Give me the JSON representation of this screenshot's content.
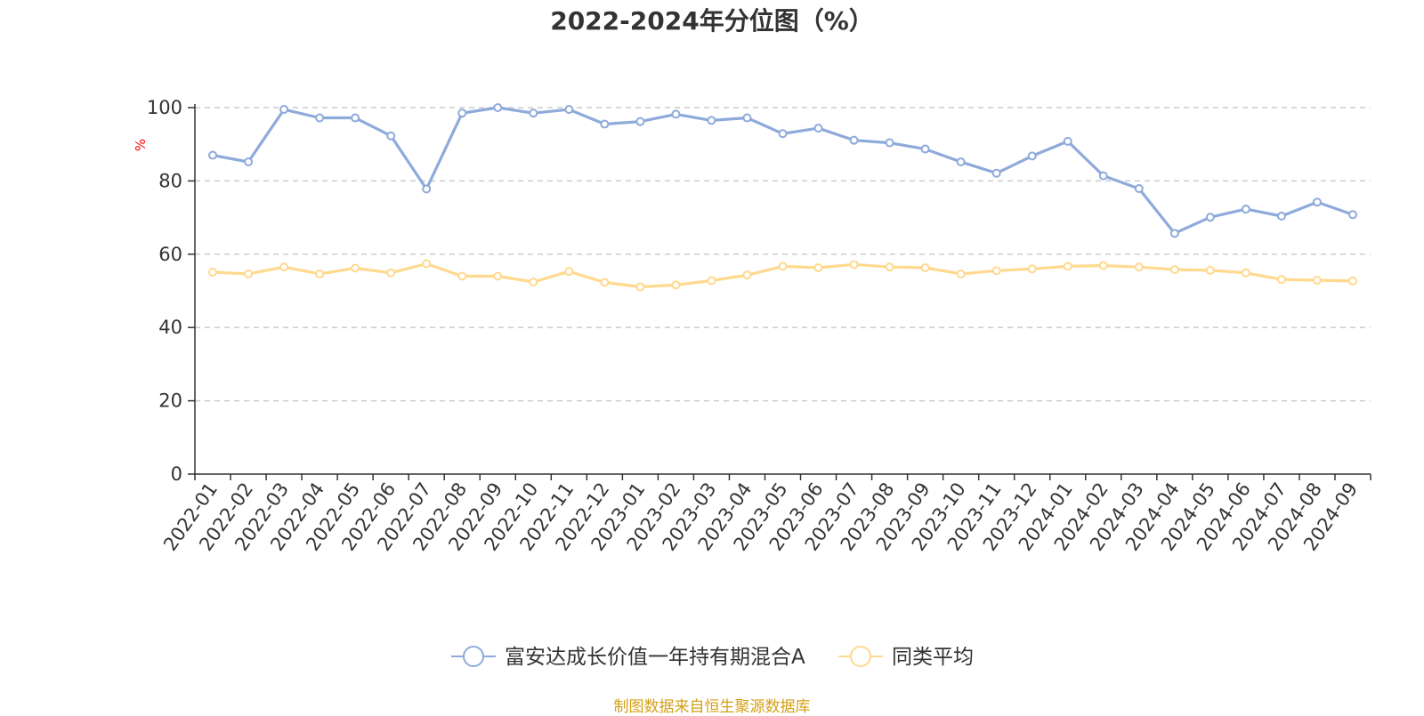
{
  "chart_data": {
    "type": "line",
    "title": "2022-2024年分位图（%）",
    "ylabel": "%",
    "xlabel": "",
    "ylim": [
      0,
      100
    ],
    "yticks": [
      0,
      20,
      40,
      60,
      80,
      100
    ],
    "grid": "horizontal dashed",
    "legend_position": "bottom",
    "categories": [
      "2022-01",
      "2022-02",
      "2022-03",
      "2022-04",
      "2022-05",
      "2022-06",
      "2022-07",
      "2022-08",
      "2022-09",
      "2022-10",
      "2022-11",
      "2022-12",
      "2023-01",
      "2023-02",
      "2023-03",
      "2023-04",
      "2023-05",
      "2023-06",
      "2023-07",
      "2023-08",
      "2023-09",
      "2023-10",
      "2023-11",
      "2023-12",
      "2024-01",
      "2024-02",
      "2024-03",
      "2024-04",
      "2024-05",
      "2024-06",
      "2024-07",
      "2024-08",
      "2024-09"
    ],
    "series": [
      {
        "name": "富安达成长价值一年持有期混合A",
        "color": "#8eaadb",
        "values": [
          87,
          85.2,
          99.5,
          97.2,
          97.2,
          92.3,
          77.8,
          98.5,
          100,
          98.5,
          99.5,
          95.5,
          96.2,
          98.2,
          96.5,
          97.2,
          92.9,
          94.4,
          91.1,
          90.4,
          88.7,
          85.2,
          82.1,
          86.8,
          90.8,
          81.4,
          77.9,
          65.7,
          70.1,
          72.3,
          70.4,
          74.2,
          70.8
        ]
      },
      {
        "name": "同类平均",
        "color": "#ffd98e",
        "values": [
          55.1,
          54.6,
          56.5,
          54.6,
          56.2,
          54.9,
          57.4,
          54,
          54,
          52.4,
          55.3,
          52.3,
          51.1,
          51.6,
          52.8,
          54.3,
          56.7,
          56.3,
          57.2,
          56.5,
          56.3,
          54.6,
          55.5,
          56,
          56.7,
          56.9,
          56.5,
          55.8,
          55.6,
          54.9,
          53.1,
          52.9,
          52.7
        ]
      }
    ]
  },
  "source": "制图数据来自恒生聚源数据库"
}
